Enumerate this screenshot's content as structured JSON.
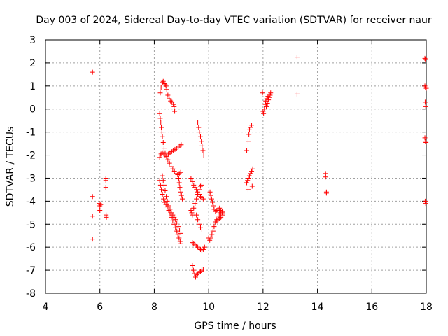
{
  "chart_data": {
    "type": "scatter",
    "title": "Day 003 of 2024, Sidereal Day-to-day VTEC variation (SDTVAR) for receiver naur",
    "xlabel": "GPS time / hours",
    "ylabel": "SDTVAR / TECUs",
    "xlim": [
      4,
      18
    ],
    "ylim": [
      -8,
      3
    ],
    "xticks": [
      4,
      6,
      8,
      10,
      12,
      14,
      16,
      18
    ],
    "yticks": [
      -8,
      -7,
      -6,
      -5,
      -4,
      -3,
      -2,
      -1,
      0,
      1,
      2,
      3
    ],
    "xtick_labels": [
      "4",
      "6",
      "8",
      "10",
      "12",
      "14",
      "16",
      "18"
    ],
    "ytick_labels": [
      "-8",
      "-7",
      "-6",
      "-5",
      "-4",
      "-3",
      "-2",
      "-1",
      "0",
      "1",
      "2",
      "3"
    ],
    "grid": true,
    "marker": "+",
    "marker_color": "#ff0000",
    "series": [
      {
        "name": "naur",
        "points": [
          [
            5.73,
            1.6
          ],
          [
            5.73,
            -3.8
          ],
          [
            5.73,
            -4.65
          ],
          [
            5.73,
            -5.65
          ],
          [
            5.98,
            -4.1
          ],
          [
            6.0,
            -4.2
          ],
          [
            6.0,
            -4.4
          ],
          [
            6.03,
            -4.15
          ],
          [
            6.22,
            -3.0
          ],
          [
            6.22,
            -3.1
          ],
          [
            6.22,
            -3.4
          ],
          [
            6.23,
            -4.6
          ],
          [
            6.24,
            -4.7
          ],
          [
            8.22,
            0.7
          ],
          [
            8.25,
            0.95
          ],
          [
            8.3,
            1.15
          ],
          [
            8.33,
            1.2
          ],
          [
            8.36,
            1.1
          ],
          [
            8.4,
            1.05
          ],
          [
            8.43,
            1.0
          ],
          [
            8.46,
            0.85
          ],
          [
            8.5,
            0.6
          ],
          [
            8.55,
            0.45
          ],
          [
            8.6,
            0.35
          ],
          [
            8.65,
            0.3
          ],
          [
            8.7,
            0.2
          ],
          [
            8.73,
            0.1
          ],
          [
            8.75,
            -0.1
          ],
          [
            8.2,
            -0.2
          ],
          [
            8.22,
            -0.4
          ],
          [
            8.24,
            -0.6
          ],
          [
            8.26,
            -0.8
          ],
          [
            8.28,
            -1.0
          ],
          [
            8.3,
            -1.2
          ],
          [
            8.33,
            -1.45
          ],
          [
            8.36,
            -1.7
          ],
          [
            8.4,
            -1.9
          ],
          [
            8.45,
            -2.05
          ],
          [
            8.5,
            -2.2
          ],
          [
            8.56,
            -2.35
          ],
          [
            8.62,
            -2.5
          ],
          [
            8.68,
            -2.6
          ],
          [
            8.74,
            -2.7
          ],
          [
            8.8,
            -2.8
          ],
          [
            8.86,
            -2.85
          ],
          [
            8.92,
            -2.8
          ],
          [
            8.97,
            -2.75
          ],
          [
            8.2,
            -2.1
          ],
          [
            8.22,
            -2.0
          ],
          [
            8.25,
            -1.95
          ],
          [
            8.3,
            -1.9
          ],
          [
            8.35,
            -1.95
          ],
          [
            8.4,
            -2.0
          ],
          [
            8.45,
            -2.05
          ],
          [
            8.52,
            -1.95
          ],
          [
            8.58,
            -1.9
          ],
          [
            8.64,
            -1.85
          ],
          [
            8.7,
            -1.8
          ],
          [
            8.76,
            -1.75
          ],
          [
            8.82,
            -1.7
          ],
          [
            8.88,
            -1.65
          ],
          [
            8.94,
            -1.6
          ],
          [
            8.99,
            -1.55
          ],
          [
            8.2,
            -3.1
          ],
          [
            8.23,
            -3.3
          ],
          [
            8.26,
            -3.5
          ],
          [
            8.3,
            -3.7
          ],
          [
            8.34,
            -3.9
          ],
          [
            8.38,
            -4.05
          ],
          [
            8.43,
            -4.15
          ],
          [
            8.48,
            -4.25
          ],
          [
            8.53,
            -4.4
          ],
          [
            8.58,
            -4.55
          ],
          [
            8.63,
            -4.7
          ],
          [
            8.68,
            -4.85
          ],
          [
            8.73,
            -5.0
          ],
          [
            8.78,
            -5.15
          ],
          [
            8.83,
            -5.3
          ],
          [
            8.87,
            -5.45
          ],
          [
            8.91,
            -5.6
          ],
          [
            8.95,
            -5.75
          ],
          [
            8.98,
            -5.85
          ],
          [
            8.3,
            -2.9
          ],
          [
            8.33,
            -3.1
          ],
          [
            8.36,
            -3.3
          ],
          [
            8.4,
            -3.55
          ],
          [
            8.44,
            -3.8
          ],
          [
            8.48,
            -4.0
          ],
          [
            8.53,
            -4.2
          ],
          [
            8.58,
            -4.35
          ],
          [
            8.63,
            -4.5
          ],
          [
            8.68,
            -4.6
          ],
          [
            8.73,
            -4.7
          ],
          [
            8.78,
            -4.8
          ],
          [
            8.83,
            -4.95
          ],
          [
            8.88,
            -5.1
          ],
          [
            8.93,
            -5.25
          ],
          [
            8.98,
            -5.4
          ],
          [
            8.9,
            -3.0
          ],
          [
            8.92,
            -3.2
          ],
          [
            8.94,
            -3.4
          ],
          [
            8.97,
            -3.6
          ],
          [
            9.0,
            -3.75
          ],
          [
            9.03,
            -3.9
          ],
          [
            9.4,
            -6.8
          ],
          [
            9.44,
            -7.0
          ],
          [
            9.48,
            -7.15
          ],
          [
            9.52,
            -7.3
          ],
          [
            9.56,
            -7.2
          ],
          [
            9.6,
            -7.15
          ],
          [
            9.65,
            -7.1
          ],
          [
            9.7,
            -7.05
          ],
          [
            9.75,
            -7.0
          ],
          [
            9.8,
            -6.95
          ],
          [
            9.4,
            -5.8
          ],
          [
            9.45,
            -5.85
          ],
          [
            9.5,
            -5.9
          ],
          [
            9.55,
            -5.95
          ],
          [
            9.6,
            -6.0
          ],
          [
            9.65,
            -6.05
          ],
          [
            9.7,
            -6.1
          ],
          [
            9.75,
            -6.15
          ],
          [
            9.8,
            -6.1
          ],
          [
            9.85,
            -6.0
          ],
          [
            9.35,
            -4.4
          ],
          [
            9.38,
            -4.5
          ],
          [
            9.4,
            -4.6
          ],
          [
            9.45,
            -4.3
          ],
          [
            9.5,
            -4.1
          ],
          [
            9.55,
            -3.9
          ],
          [
            9.6,
            -3.7
          ],
          [
            9.65,
            -3.5
          ],
          [
            9.7,
            -3.35
          ],
          [
            9.75,
            -3.3
          ],
          [
            9.35,
            -3.0
          ],
          [
            9.4,
            -3.15
          ],
          [
            9.45,
            -3.3
          ],
          [
            9.5,
            -3.4
          ],
          [
            9.55,
            -3.5
          ],
          [
            9.6,
            -3.6
          ],
          [
            9.65,
            -3.7
          ],
          [
            9.7,
            -3.8
          ],
          [
            9.75,
            -3.85
          ],
          [
            9.8,
            -3.9
          ],
          [
            9.55,
            -4.6
          ],
          [
            9.6,
            -4.8
          ],
          [
            9.65,
            -5.0
          ],
          [
            9.7,
            -5.15
          ],
          [
            9.75,
            -5.25
          ],
          [
            9.6,
            -0.6
          ],
          [
            9.63,
            -0.8
          ],
          [
            9.66,
            -1.0
          ],
          [
            9.7,
            -1.2
          ],
          [
            9.73,
            -1.4
          ],
          [
            9.76,
            -1.6
          ],
          [
            9.79,
            -1.8
          ],
          [
            9.82,
            -2.0
          ],
          [
            10.0,
            -5.6
          ],
          [
            10.04,
            -5.7
          ],
          [
            10.08,
            -5.6
          ],
          [
            10.12,
            -5.45
          ],
          [
            10.16,
            -5.3
          ],
          [
            10.2,
            -5.1
          ],
          [
            10.25,
            -4.95
          ],
          [
            10.3,
            -4.8
          ],
          [
            10.35,
            -4.65
          ],
          [
            10.4,
            -4.55
          ],
          [
            10.45,
            -4.5
          ],
          [
            10.5,
            -4.45
          ],
          [
            10.52,
            -4.6
          ],
          [
            10.05,
            -3.6
          ],
          [
            10.08,
            -3.75
          ],
          [
            10.11,
            -3.9
          ],
          [
            10.14,
            -4.05
          ],
          [
            10.17,
            -4.2
          ],
          [
            10.2,
            -4.35
          ],
          [
            10.25,
            -4.45
          ],
          [
            10.3,
            -4.4
          ],
          [
            10.35,
            -4.35
          ],
          [
            10.4,
            -4.3
          ],
          [
            10.45,
            -4.4
          ],
          [
            10.5,
            -4.5
          ],
          [
            10.25,
            -4.9
          ],
          [
            10.3,
            -4.85
          ],
          [
            10.35,
            -4.8
          ],
          [
            10.4,
            -4.75
          ],
          [
            10.45,
            -4.7
          ],
          [
            11.4,
            -1.8
          ],
          [
            11.45,
            -1.4
          ],
          [
            11.48,
            -1.1
          ],
          [
            11.5,
            -0.9
          ],
          [
            11.55,
            -0.8
          ],
          [
            11.58,
            -0.7
          ],
          [
            11.4,
            -3.2
          ],
          [
            11.43,
            -3.1
          ],
          [
            11.46,
            -3.0
          ],
          [
            11.5,
            -2.9
          ],
          [
            11.54,
            -2.8
          ],
          [
            11.58,
            -2.7
          ],
          [
            11.62,
            -2.6
          ],
          [
            11.6,
            -3.35
          ],
          [
            11.45,
            -3.5
          ],
          [
            11.98,
            0.7
          ],
          [
            12.0,
            -0.1
          ],
          [
            12.02,
            -0.2
          ],
          [
            12.05,
            0.0
          ],
          [
            12.08,
            0.2
          ],
          [
            12.1,
            0.35
          ],
          [
            12.14,
            0.45
          ],
          [
            12.18,
            0.55
          ],
          [
            12.22,
            0.5
          ],
          [
            12.26,
            0.6
          ],
          [
            12.28,
            0.7
          ],
          [
            12.12,
            0.1
          ],
          [
            12.16,
            0.25
          ],
          [
            12.2,
            0.4
          ],
          [
            13.25,
            2.25
          ],
          [
            13.25,
            0.65
          ],
          [
            14.3,
            -2.8
          ],
          [
            14.3,
            -2.95
          ],
          [
            14.33,
            -3.6
          ],
          [
            14.33,
            -3.65
          ],
          [
            17.95,
            2.2
          ],
          [
            17.97,
            2.15
          ],
          [
            17.95,
            1.0
          ],
          [
            17.97,
            0.95
          ],
          [
            18.0,
            0.9
          ],
          [
            17.96,
            0.3
          ],
          [
            17.98,
            0.1
          ],
          [
            17.95,
            -1.25
          ],
          [
            17.97,
            -1.4
          ],
          [
            17.99,
            -1.45
          ],
          [
            17.96,
            -4.0
          ],
          [
            17.98,
            -4.1
          ]
        ]
      }
    ]
  }
}
